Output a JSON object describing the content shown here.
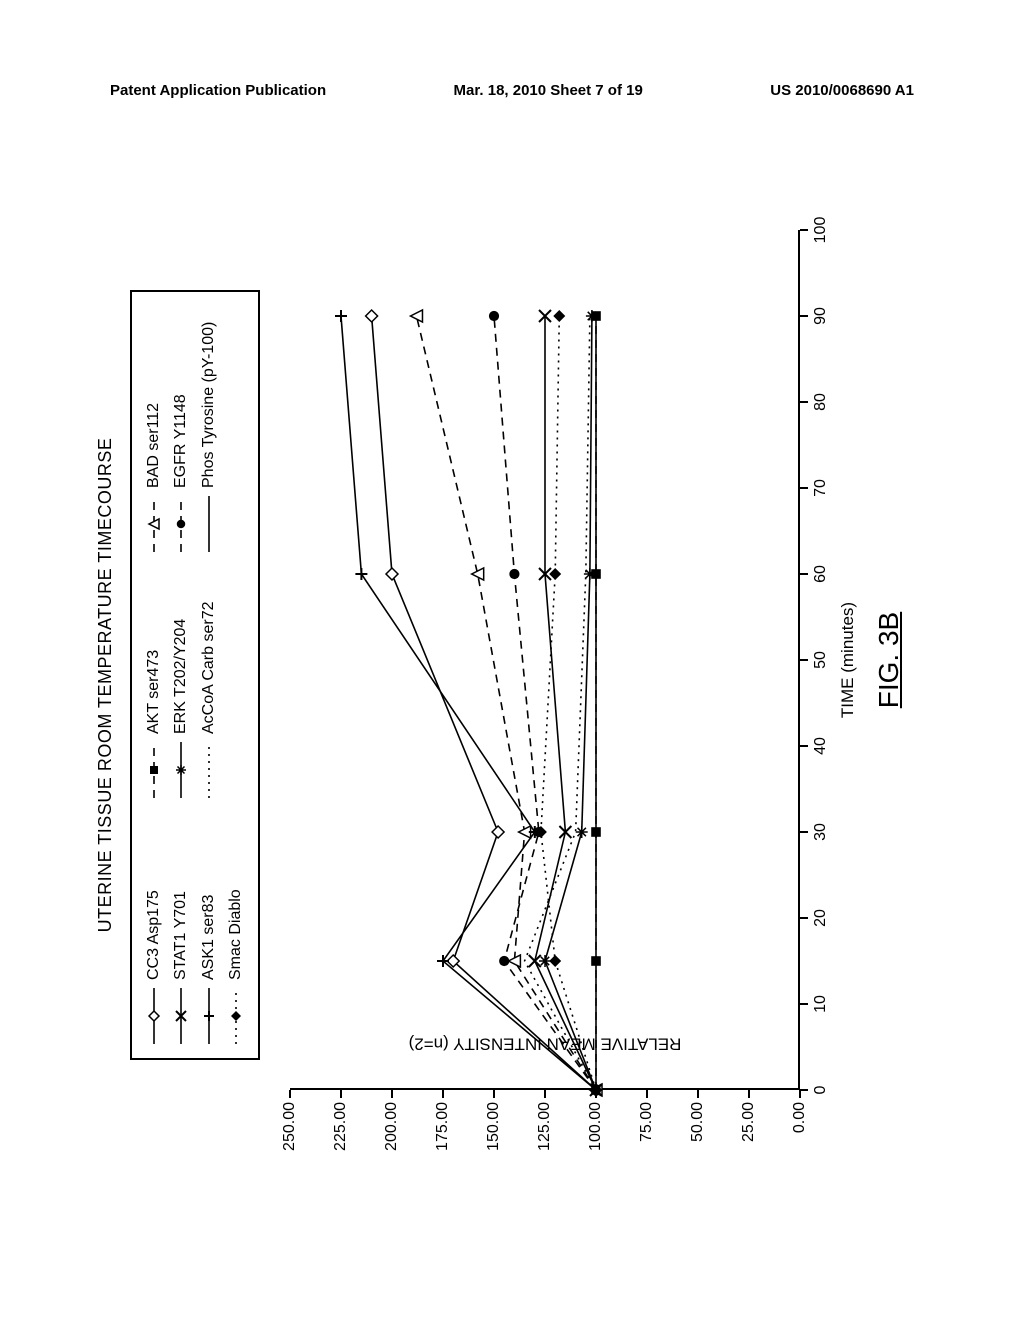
{
  "header": {
    "left": "Patent Application Publication",
    "center": "Mar. 18, 2010  Sheet 7 of 19",
    "right": "US 2010/0068690 A1"
  },
  "chart": {
    "type": "line",
    "title": "UTERINE TISSUE   ROOM TEMPERATURE TIMECOURSE",
    "figure_label": "FIG. 3B",
    "x_label": "TIME (minutes)",
    "y_label": "RELATIVE MEAN INTENSITY (n=2)",
    "x_ticks": [
      0,
      10,
      20,
      30,
      40,
      50,
      60,
      70,
      80,
      90,
      100
    ],
    "y_ticks": [
      "0.00",
      "25.00",
      "50.00",
      "75.00",
      "100.00",
      "125.00",
      "150.00",
      "175.00",
      "200.00",
      "225.00",
      "250.00"
    ],
    "xlim": [
      0,
      100
    ],
    "ylim": [
      0,
      250
    ],
    "background_color": "#ffffff",
    "axis_color": "#000000",
    "font_size_ticks": 16,
    "font_size_labels": 17,
    "series": [
      {
        "name": "CC3 Asp175",
        "marker": "diamond-open",
        "dash": "solid",
        "color": "#000000",
        "x": [
          0,
          15,
          30,
          60,
          90
        ],
        "y": [
          100,
          170,
          148,
          200,
          210
        ]
      },
      {
        "name": "AKT ser473",
        "marker": "square-solid",
        "dash": "dashed",
        "color": "#000000",
        "x": [
          0,
          15,
          30,
          60,
          90
        ],
        "y": [
          100,
          100,
          100,
          100,
          100
        ]
      },
      {
        "name": "BAD ser112",
        "marker": "triangle-open",
        "dash": "dashed",
        "color": "#000000",
        "x": [
          0,
          15,
          30,
          60,
          90
        ],
        "y": [
          100,
          140,
          135,
          158,
          188
        ]
      },
      {
        "name": "STAT1 Y701",
        "marker": "x",
        "dash": "solid",
        "color": "#000000",
        "x": [
          0,
          15,
          30,
          60,
          90
        ],
        "y": [
          100,
          130,
          115,
          125,
          125
        ]
      },
      {
        "name": "ERK T202/Y204",
        "marker": "asterisk",
        "dash": "solid",
        "color": "#000000",
        "x": [
          0,
          15,
          30,
          60,
          90
        ],
        "y": [
          100,
          125,
          107,
          103,
          102
        ]
      },
      {
        "name": "EGFR Y1148",
        "marker": "circle-solid",
        "dash": "dashed",
        "color": "#000000",
        "x": [
          0,
          15,
          30,
          60,
          90
        ],
        "y": [
          100,
          145,
          128,
          140,
          150
        ]
      },
      {
        "name": "ASK1 ser83",
        "marker": "plus",
        "dash": "solid",
        "color": "#000000",
        "x": [
          0,
          15,
          30,
          60,
          90
        ],
        "y": [
          100,
          175,
          130,
          215,
          225
        ]
      },
      {
        "name": "AcCoA Carb ser72",
        "marker": "none",
        "dash": "dotted",
        "color": "#000000",
        "x": [
          0,
          15,
          30,
          60,
          90
        ],
        "y": [
          100,
          135,
          110,
          105,
          103
        ]
      },
      {
        "name": "Phos Tyrosine (pY-100)",
        "marker": "none",
        "dash": "solid",
        "color": "#000000",
        "x": [
          0,
          15,
          30,
          60,
          90
        ],
        "y": [
          100,
          100,
          100,
          100,
          100
        ]
      },
      {
        "name": "Smac Diablo",
        "marker": "diamond-solid",
        "dash": "dotted",
        "color": "#000000",
        "x": [
          0,
          15,
          30,
          60,
          90
        ],
        "y": [
          100,
          120,
          127,
          120,
          118
        ]
      }
    ],
    "legend_order": [
      [
        "CC3 Asp175",
        "AKT ser473",
        "BAD ser112"
      ],
      [
        "STAT1 Y701",
        "ERK T202/Y204",
        "EGFR Y1148"
      ],
      [
        "ASK1 ser83",
        "AcCoA Carb ser72",
        "Phos Tyrosine (pY-100)"
      ],
      [
        "Smac Diablo",
        "",
        ""
      ]
    ]
  }
}
